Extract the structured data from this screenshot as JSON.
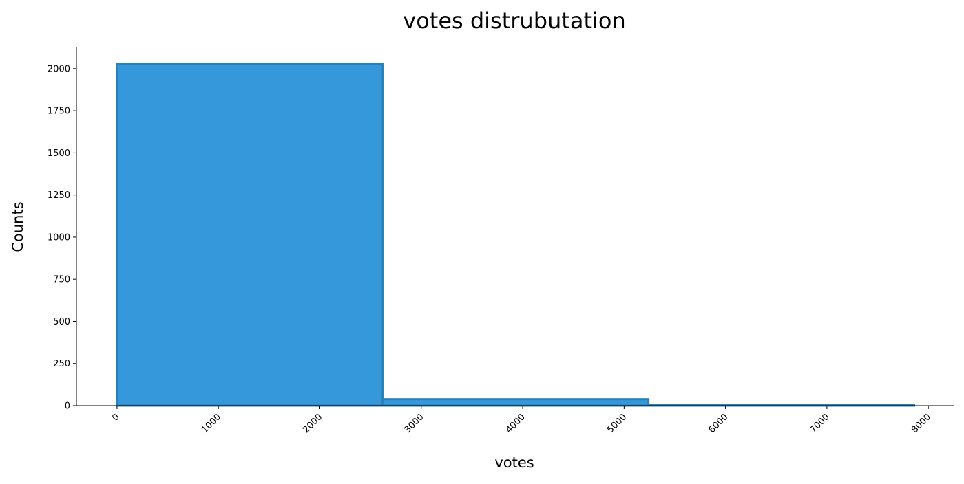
{
  "chart_data": {
    "type": "bar",
    "title": "votes distrubutation",
    "xlabel": "votes",
    "ylabel": "Counts",
    "bins": [
      {
        "start": 0,
        "end": 2620,
        "count": 2027
      },
      {
        "start": 2620,
        "end": 5240,
        "count": 38
      },
      {
        "start": 5240,
        "end": 7860,
        "count": 3
      }
    ],
    "xlim": [
      -400,
      8250
    ],
    "ylim": [
      0,
      2130
    ],
    "xticks": [
      0,
      1000,
      2000,
      3000,
      4000,
      5000,
      6000,
      7000,
      8000
    ],
    "yticks": [
      0,
      250,
      500,
      750,
      1000,
      1250,
      1500,
      1750,
      2000
    ],
    "grid": false,
    "legend": false,
    "bar_color": "#3498db",
    "edge_color": "#2a80b9",
    "spines": [
      "left",
      "bottom"
    ]
  }
}
